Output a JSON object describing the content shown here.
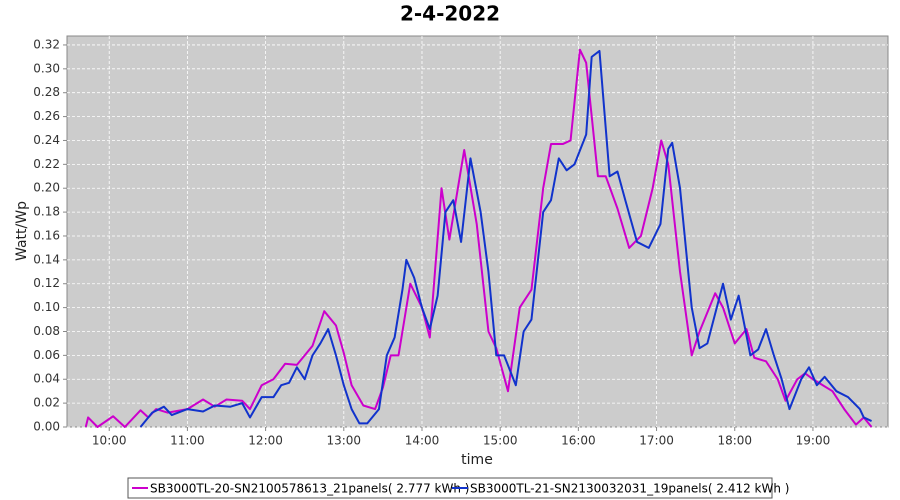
{
  "chart_data": {
    "type": "line",
    "title": "2-4-2022",
    "x_label": "time",
    "y_label": "Watt/Wp",
    "xlim": [
      9.46,
      19.96
    ],
    "ylim": [
      0,
      0.3275
    ],
    "xticks": [
      {
        "value": 10,
        "label": "10:00"
      },
      {
        "value": 11,
        "label": "11:00"
      },
      {
        "value": 12,
        "label": "12:00"
      },
      {
        "value": 13,
        "label": "13:00"
      },
      {
        "value": 14,
        "label": "14:00"
      },
      {
        "value": 15,
        "label": "15:00"
      },
      {
        "value": 16,
        "label": "16:00"
      },
      {
        "value": 17,
        "label": "17:00"
      },
      {
        "value": 18,
        "label": "18:00"
      },
      {
        "value": 19,
        "label": "19:00"
      }
    ],
    "yticks": [
      {
        "value": 0,
        "label": "0.00"
      },
      0.02,
      0.04,
      0.06,
      0.08,
      {
        "value": 0.1,
        "label": "0.10"
      },
      0.12,
      0.14,
      0.16,
      0.18,
      {
        "value": 0.2,
        "label": "0.20"
      },
      0.22,
      0.24,
      0.26,
      0.28,
      {
        "value": 0.3,
        "label": "0.30"
      },
      0.32
    ],
    "grid": true,
    "legend": "bottom",
    "series": [
      {
        "name": "SB3000TL-20-SN2100578613_21panels( 2.777 kWh )",
        "color": "#cc00cc",
        "x": [
          9.7,
          9.73,
          9.85,
          10.05,
          10.2,
          10.4,
          10.5,
          10.6,
          10.75,
          11.0,
          11.2,
          11.35,
          11.5,
          11.7,
          11.8,
          11.95,
          12.1,
          12.25,
          12.4,
          12.5,
          12.6,
          12.75,
          12.9,
          13.0,
          13.1,
          13.25,
          13.4,
          13.5,
          13.6,
          13.7,
          13.85,
          14.0,
          14.1,
          14.25,
          14.35,
          14.54,
          14.7,
          14.85,
          14.95,
          15.1,
          15.25,
          15.4,
          15.55,
          15.65,
          15.8,
          15.9,
          16.02,
          16.1,
          16.25,
          16.35,
          16.5,
          16.65,
          16.8,
          16.95,
          17.06,
          17.15,
          17.3,
          17.45,
          17.55,
          17.75,
          17.85,
          18.0,
          18.15,
          18.25,
          18.4,
          18.55,
          18.65,
          18.8,
          18.9,
          19.0,
          19.1,
          19.25,
          19.4,
          19.55,
          19.65,
          19.75
        ],
        "values": [
          0,
          0.008,
          0,
          0.009,
          0,
          0.014,
          0.008,
          0.015,
          0.012,
          0.015,
          0.023,
          0.017,
          0.023,
          0.022,
          0.015,
          0.035,
          0.04,
          0.053,
          0.052,
          0.06,
          0.068,
          0.097,
          0.085,
          0.062,
          0.035,
          0.018,
          0.015,
          0.033,
          0.06,
          0.06,
          0.12,
          0.1,
          0.075,
          0.2,
          0.157,
          0.232,
          0.17,
          0.08,
          0.066,
          0.03,
          0.1,
          0.115,
          0.2,
          0.237,
          0.237,
          0.24,
          0.316,
          0.305,
          0.21,
          0.21,
          0.183,
          0.15,
          0.16,
          0.2,
          0.24,
          0.22,
          0.13,
          0.06,
          0.08,
          0.112,
          0.1,
          0.07,
          0.082,
          0.058,
          0.055,
          0.04,
          0.022,
          0.04,
          0.045,
          0.04,
          0.036,
          0.03,
          0.015,
          0.002,
          0.008,
          0
        ]
      },
      {
        "name": "SB3000TL-21-SN2130032031_19panels( 2.412 kWh )",
        "color": "#1133cc",
        "x": [
          10.4,
          10.55,
          10.7,
          10.8,
          11.0,
          11.2,
          11.35,
          11.55,
          11.7,
          11.8,
          11.95,
          12.1,
          12.2,
          12.3,
          12.4,
          12.5,
          12.6,
          12.7,
          12.8,
          12.9,
          13.0,
          13.1,
          13.2,
          13.3,
          13.45,
          13.55,
          13.65,
          13.75,
          13.8,
          13.9,
          14.0,
          14.1,
          14.2,
          14.3,
          14.4,
          14.5,
          14.62,
          14.75,
          14.85,
          14.95,
          15.05,
          15.2,
          15.3,
          15.4,
          15.55,
          15.65,
          15.75,
          15.85,
          15.95,
          16.1,
          16.17,
          16.27,
          16.4,
          16.5,
          16.6,
          16.75,
          16.9,
          17.05,
          17.15,
          17.2,
          17.3,
          17.45,
          17.55,
          17.65,
          17.85,
          17.95,
          18.05,
          18.2,
          18.3,
          18.4,
          18.5,
          18.6,
          18.7,
          18.85,
          18.95,
          19.05,
          19.15,
          19.3,
          19.45,
          19.6,
          19.65,
          19.75
        ],
        "values": [
          0,
          0.012,
          0.017,
          0.01,
          0.015,
          0.013,
          0.018,
          0.017,
          0.02,
          0.008,
          0.025,
          0.025,
          0.035,
          0.037,
          0.05,
          0.04,
          0.06,
          0.07,
          0.082,
          0.06,
          0.035,
          0.015,
          0.003,
          0.003,
          0.015,
          0.06,
          0.075,
          0.115,
          0.14,
          0.125,
          0.1,
          0.082,
          0.11,
          0.18,
          0.19,
          0.155,
          0.225,
          0.18,
          0.13,
          0.06,
          0.06,
          0.035,
          0.08,
          0.09,
          0.18,
          0.19,
          0.225,
          0.215,
          0.22,
          0.245,
          0.31,
          0.315,
          0.21,
          0.214,
          0.19,
          0.155,
          0.15,
          0.17,
          0.233,
          0.238,
          0.2,
          0.1,
          0.066,
          0.07,
          0.12,
          0.09,
          0.11,
          0.06,
          0.065,
          0.082,
          0.06,
          0.04,
          0.015,
          0.04,
          0.05,
          0.035,
          0.042,
          0.03,
          0.025,
          0.015,
          0.008,
          0.005
        ]
      }
    ]
  }
}
